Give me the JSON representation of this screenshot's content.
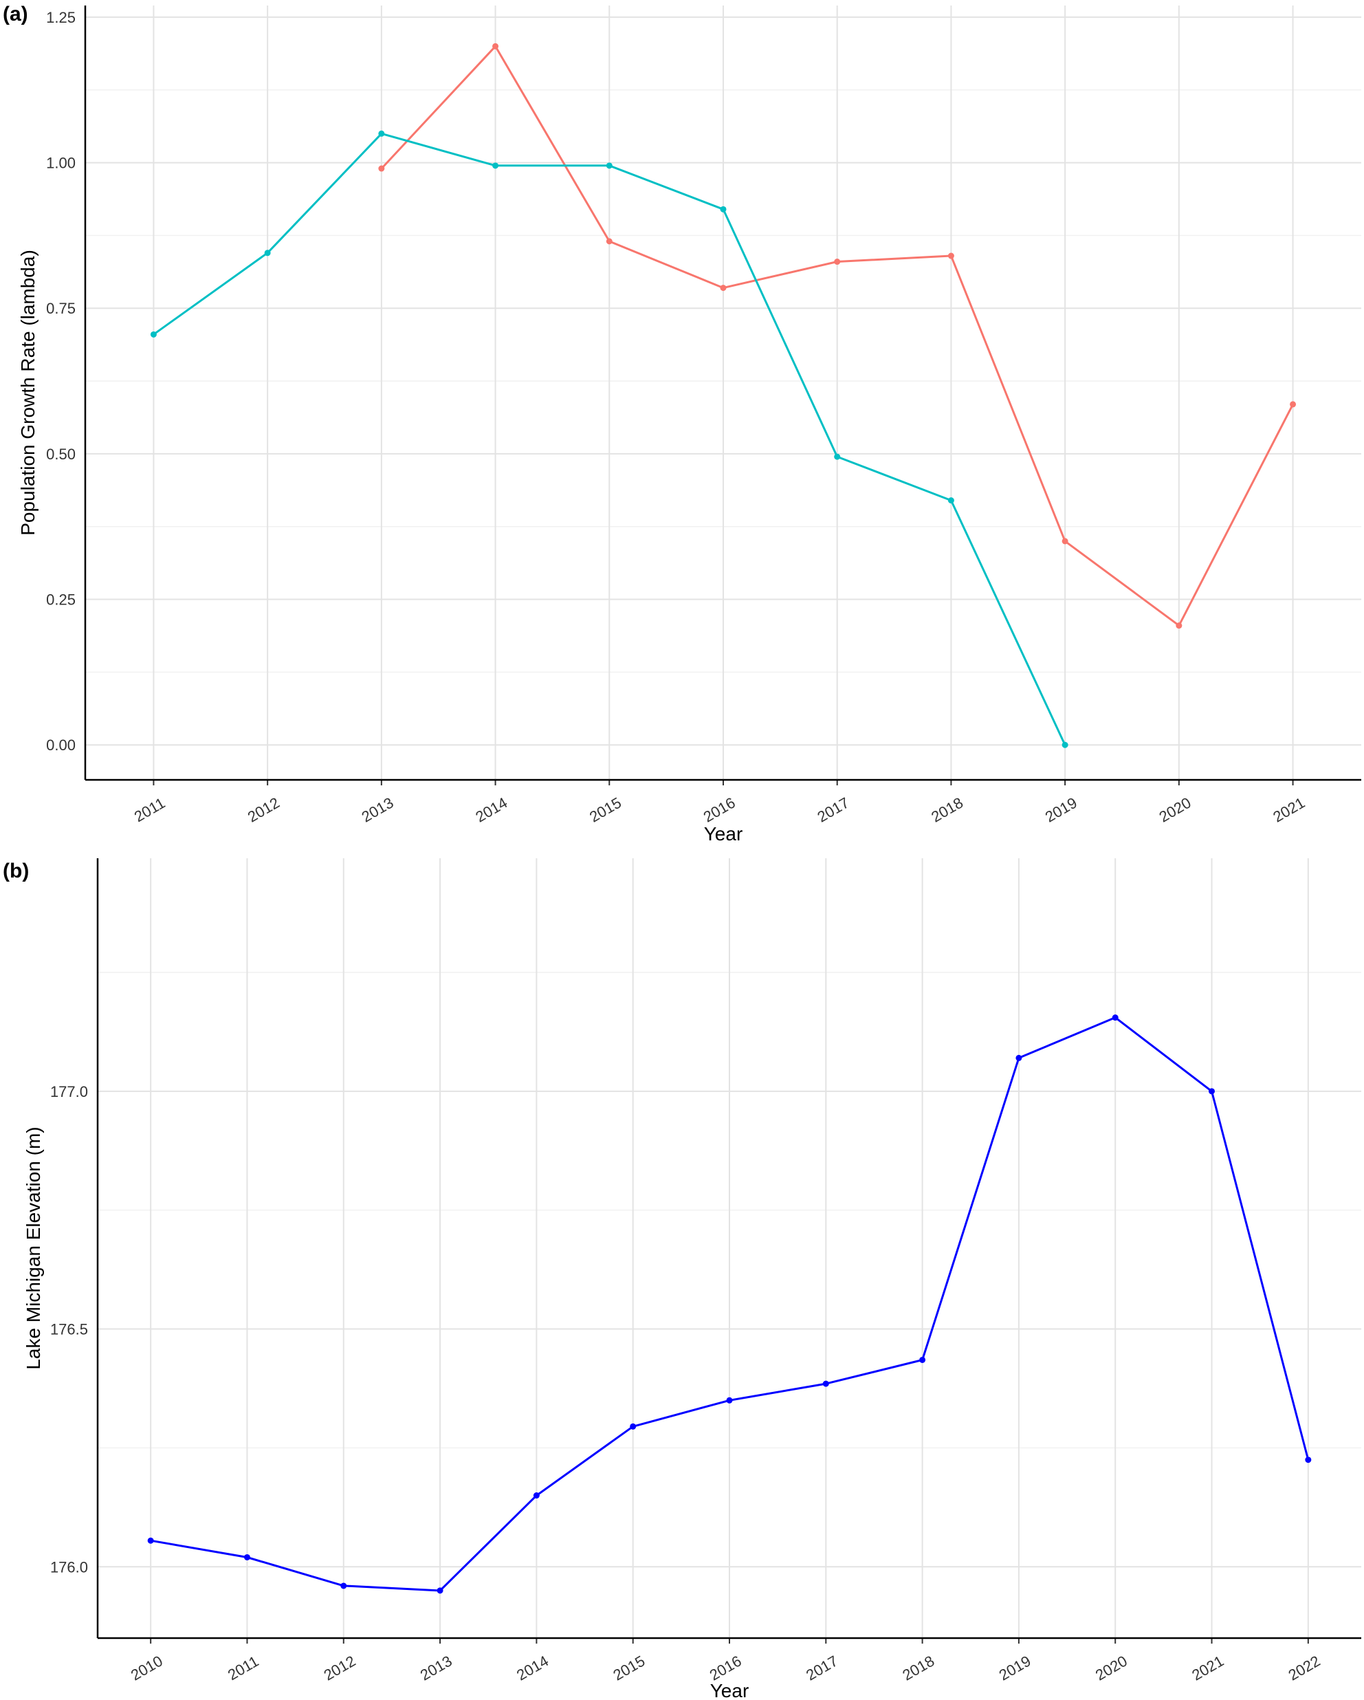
{
  "panel_a_label": "(a)",
  "panel_b_label": "(b)",
  "chart_data": [
    {
      "type": "line",
      "xlabel": "Year",
      "ylabel": "Population Growth Rate (lambda)",
      "x_ticks": [
        "2011",
        "2012",
        "2013",
        "2014",
        "2015",
        "2016",
        "2017",
        "2018",
        "2019",
        "2020",
        "2021"
      ],
      "y_ticks": [
        "0.00",
        "0.25",
        "0.50",
        "0.75",
        "1.00",
        "1.25"
      ],
      "xlim": [
        2010.4,
        2021.6
      ],
      "ylim": [
        -0.06,
        1.27
      ],
      "grid": true,
      "series": [
        {
          "color": "#F8766D",
          "x": [
            2013,
            2014,
            2015,
            2016,
            2017,
            2018,
            2019,
            2020,
            2021
          ],
          "y": [
            0.99,
            1.2,
            0.865,
            0.785,
            0.83,
            0.84,
            0.35,
            0.205,
            0.585
          ]
        },
        {
          "color": "#00BFC4",
          "x": [
            2011,
            2012,
            2013,
            2014,
            2015,
            2016,
            2017,
            2018,
            2019
          ],
          "y": [
            0.705,
            0.845,
            1.05,
            0.995,
            0.995,
            0.92,
            0.495,
            0.42,
            0.0
          ]
        }
      ]
    },
    {
      "type": "line",
      "xlabel": "Year",
      "ylabel": "Lake Michigan Elevation (m)",
      "x_ticks": [
        "2010",
        "2011",
        "2012",
        "2013",
        "2014",
        "2015",
        "2016",
        "2017",
        "2018",
        "2019",
        "2020",
        "2021",
        "2022"
      ],
      "y_ticks": [
        "176.0",
        "176.5",
        "177.0"
      ],
      "xlim": [
        2009.45,
        2022.55
      ],
      "ylim": [
        175.85,
        177.49
      ],
      "grid": true,
      "series": [
        {
          "color": "#0000FF",
          "x": [
            2010,
            2011,
            2012,
            2013,
            2014,
            2015,
            2016,
            2017,
            2018,
            2019,
            2020,
            2021,
            2022
          ],
          "y": [
            176.055,
            176.02,
            175.96,
            175.95,
            176.15,
            176.295,
            176.35,
            176.385,
            176.435,
            177.07,
            177.155,
            177.0,
            176.225
          ]
        }
      ]
    }
  ]
}
